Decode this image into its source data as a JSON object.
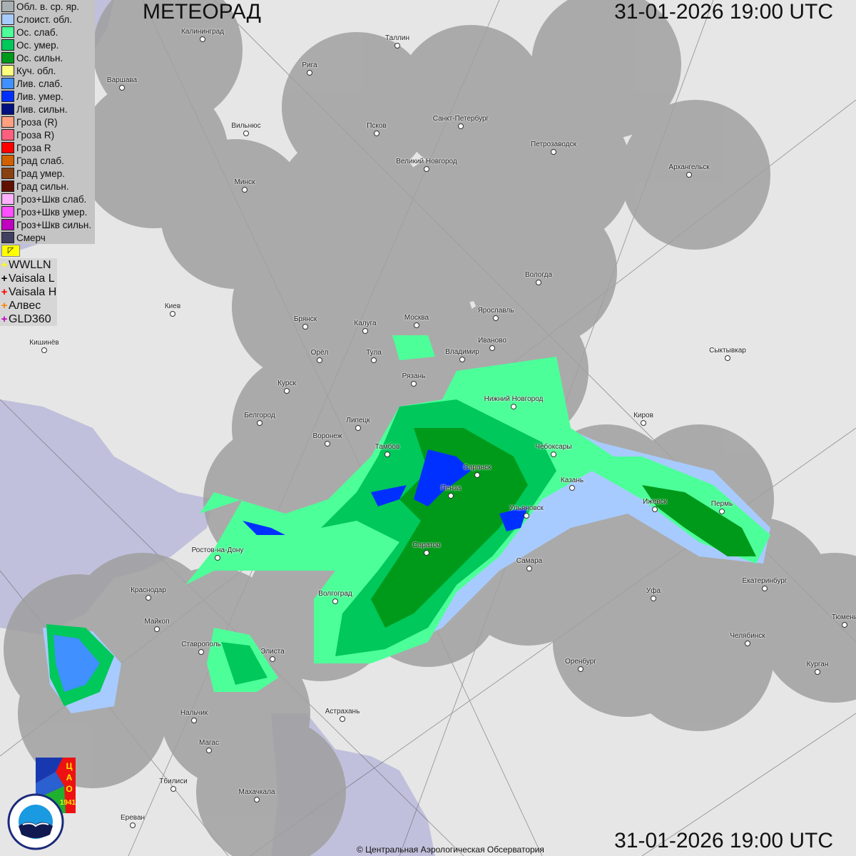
{
  "header": {
    "title": "МЕТЕОРАД",
    "timestamp": "31-01-2026  19:00 UTC"
  },
  "legend": [
    {
      "label": "Обл. в. ср. яр.",
      "color": "#a8b0b4"
    },
    {
      "label": "Слоист. обл.",
      "color": "#a8cbff"
    },
    {
      "label": "Ос. слаб.",
      "color": "#4dff99"
    },
    {
      "label": "Ос. умер.",
      "color": "#00c85a"
    },
    {
      "label": "Ос. сильн.",
      "color": "#009a1a"
    },
    {
      "label": "Куч. обл.",
      "color": "#ffff80"
    },
    {
      "label": "Лив. слаб.",
      "color": "#4090ff"
    },
    {
      "label": "Лив. умер.",
      "color": "#0030ff"
    },
    {
      "label": "Лив. сильн.",
      "color": "#001080"
    },
    {
      "label": "Гроза (R)",
      "color": "#ffa080"
    },
    {
      "label": "Гроза R)",
      "color": "#ff6080"
    },
    {
      "label": "Гроза R",
      "color": "#ff0000"
    },
    {
      "label": "Град слаб.",
      "color": "#d06000"
    },
    {
      "label": "Град умер.",
      "color": "#8a4010"
    },
    {
      "label": "Град сильн.",
      "color": "#601000"
    },
    {
      "label": "Гроз+Шкв слаб.",
      "color": "#ffb0ff"
    },
    {
      "label": "Гроз+Шкв умер.",
      "color": "#ff50ff"
    },
    {
      "label": "Гроз+Шкв сильн.",
      "color": "#c000c0"
    },
    {
      "label": "Смерч",
      "color": "#404060"
    }
  ],
  "lightning": [
    {
      "label": "WWLLN",
      "color": "#ffff00"
    },
    {
      "label": "Vaisala L",
      "color": "#000000"
    },
    {
      "label": "Vaisala H",
      "color": "#ff0000"
    },
    {
      "label": "Алвес",
      "color": "#ff8000"
    },
    {
      "label": "GLD360",
      "color": "#c000c0"
    }
  ],
  "flag_icon": "lightning-toggle-icon",
  "cities": [
    "Калининград",
    "Таллин",
    "Рига",
    "Варшава",
    "Санкт-Петербург",
    "Псков",
    "Вильнюс",
    "Петрозаводск",
    "Великий Новгород",
    "Архангельск",
    "Минск",
    "Вологда",
    "Ярославль",
    "Киев",
    "Брянск",
    "Калуга",
    "Москва",
    "Иваново",
    "Кишинёв",
    "Орёл",
    "Тула",
    "Владимир",
    "Сыктывкар",
    "Рязань",
    "Курск",
    "Нижний Новгород",
    "Белгород",
    "Липецк",
    "Киров",
    "Воронеж",
    "Тамбов",
    "Чебоксары",
    "Саранск",
    "Казань",
    "Пенза",
    "Ижевск",
    "Пермь",
    "Ульяновск",
    "Ростов-на-Дону",
    "Саратов",
    "Самара",
    "Екатеринбург",
    "Краснодар",
    "Волгоград",
    "Уфа",
    "Майкоп",
    "Тюмень",
    "Челябинск",
    "Ставрополь",
    "Элиста",
    "Оренбург",
    "Курган",
    "Нальчик",
    "Астрахань",
    "Магас",
    "Тбилиси",
    "Махачкала",
    "Ереван"
  ],
  "logos": {
    "cao": "ЦАО 1941",
    "roshydromet": "РОСГИДРОМЕТ ROSHYDROMET"
  },
  "copyright": "© Центральная Аэрологическая Обсерватория"
}
